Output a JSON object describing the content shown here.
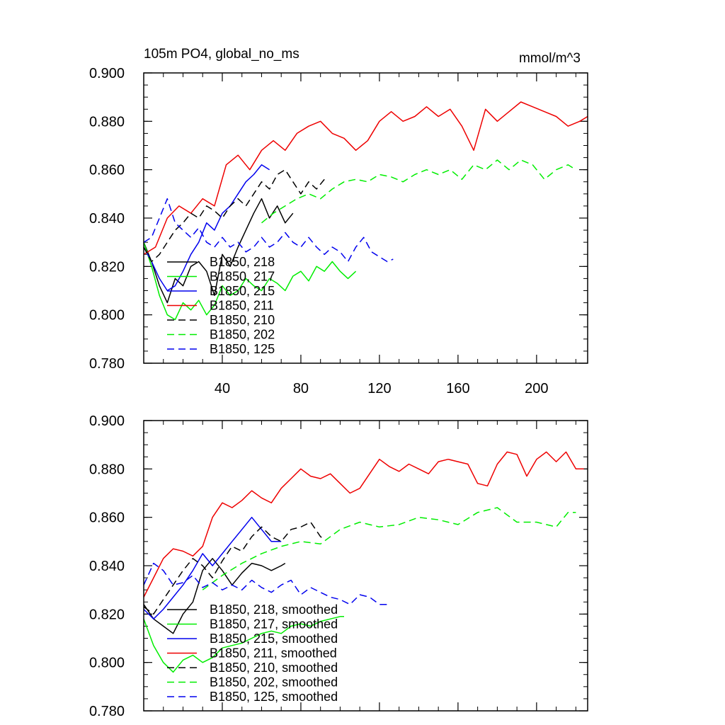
{
  "colors": {
    "black": "#000000",
    "green": "#00ee00",
    "blue": "#0000ee",
    "red": "#ee0000"
  },
  "chart_data": [
    {
      "type": "line",
      "title": "105m PO4, global_no_ms",
      "units": "mmol/m^3",
      "xlim": [
        0,
        226
      ],
      "ylim": [
        0.78,
        0.9
      ],
      "yticks": [
        "0.780",
        "0.800",
        "0.820",
        "0.840",
        "0.860",
        "0.880",
        "0.900"
      ],
      "xticks": [
        "40",
        "80",
        "120",
        "160",
        "200"
      ],
      "series": [
        {
          "name": "B1850, 218",
          "color": "#000000",
          "dash": "solid",
          "x": [
            0,
            4,
            8,
            12,
            16,
            20,
            24,
            28,
            32,
            36,
            40,
            44,
            48,
            52,
            56,
            60,
            64,
            68,
            72,
            76
          ],
          "y": [
            0.83,
            0.822,
            0.812,
            0.805,
            0.815,
            0.812,
            0.82,
            0.822,
            0.818,
            0.808,
            0.825,
            0.82,
            0.828,
            0.835,
            0.842,
            0.848,
            0.84,
            0.845,
            0.838,
            0.842
          ]
        },
        {
          "name": "B1850, 217",
          "color": "#00ee00",
          "dash": "solid",
          "x": [
            0,
            4,
            8,
            12,
            16,
            20,
            24,
            28,
            32,
            36,
            40,
            44,
            48,
            52,
            56,
            60,
            64,
            68,
            72,
            76,
            80,
            84,
            88,
            92,
            96,
            100,
            104,
            108
          ],
          "y": [
            0.83,
            0.82,
            0.808,
            0.8,
            0.798,
            0.805,
            0.802,
            0.806,
            0.8,
            0.804,
            0.812,
            0.808,
            0.81,
            0.815,
            0.812,
            0.81,
            0.815,
            0.813,
            0.81,
            0.816,
            0.818,
            0.814,
            0.82,
            0.818,
            0.822,
            0.818,
            0.815,
            0.818
          ]
        },
        {
          "name": "B1850, 215",
          "color": "#0000ee",
          "dash": "solid",
          "x": [
            0,
            4,
            8,
            12,
            16,
            20,
            24,
            28,
            32,
            36,
            40,
            44,
            48,
            52,
            56,
            60,
            64
          ],
          "y": [
            0.828,
            0.822,
            0.815,
            0.81,
            0.812,
            0.818,
            0.825,
            0.83,
            0.838,
            0.835,
            0.842,
            0.845,
            0.85,
            0.855,
            0.858,
            0.862,
            0.86
          ]
        },
        {
          "name": "B1850, 211",
          "color": "#ee0000",
          "dash": "solid",
          "x": [
            0,
            6,
            12,
            18,
            24,
            30,
            36,
            42,
            48,
            54,
            60,
            66,
            72,
            78,
            84,
            90,
            96,
            102,
            108,
            114,
            120,
            126,
            132,
            138,
            144,
            150,
            156,
            162,
            168,
            174,
            180,
            186,
            192,
            198,
            204,
            210,
            216,
            222,
            226
          ],
          "y": [
            0.825,
            0.828,
            0.84,
            0.845,
            0.842,
            0.848,
            0.845,
            0.862,
            0.866,
            0.86,
            0.868,
            0.872,
            0.868,
            0.875,
            0.878,
            0.88,
            0.875,
            0.873,
            0.868,
            0.872,
            0.88,
            0.884,
            0.88,
            0.882,
            0.886,
            0.882,
            0.885,
            0.878,
            0.868,
            0.885,
            0.88,
            0.884,
            0.888,
            0.886,
            0.884,
            0.882,
            0.878,
            0.88,
            0.882
          ]
        },
        {
          "name": "B1850, 210",
          "color": "#000000",
          "dash": "dashed",
          "x": [
            0,
            4,
            8,
            12,
            16,
            20,
            24,
            28,
            32,
            36,
            40,
            44,
            48,
            52,
            56,
            60,
            64,
            68,
            72,
            76,
            80,
            84,
            88,
            92
          ],
          "y": [
            0.828,
            0.822,
            0.825,
            0.83,
            0.835,
            0.838,
            0.842,
            0.84,
            0.845,
            0.843,
            0.84,
            0.845,
            0.848,
            0.845,
            0.85,
            0.855,
            0.852,
            0.858,
            0.86,
            0.855,
            0.85,
            0.855,
            0.852,
            0.856
          ]
        },
        {
          "name": "B1850, 202",
          "color": "#00ee00",
          "dash": "dashed",
          "x": [
            60,
            66,
            72,
            78,
            84,
            90,
            96,
            102,
            108,
            114,
            120,
            126,
            132,
            138,
            144,
            150,
            156,
            162,
            168,
            174,
            180,
            186,
            192,
            198,
            204,
            210,
            216,
            220
          ],
          "y": [
            0.838,
            0.842,
            0.845,
            0.848,
            0.85,
            0.848,
            0.852,
            0.855,
            0.856,
            0.855,
            0.858,
            0.857,
            0.855,
            0.858,
            0.86,
            0.858,
            0.86,
            0.856,
            0.862,
            0.86,
            0.864,
            0.86,
            0.864,
            0.862,
            0.856,
            0.86,
            0.862,
            0.86
          ]
        },
        {
          "name": "B1850, 125",
          "color": "#0000ee",
          "dash": "dashed",
          "x": [
            0,
            4,
            8,
            12,
            16,
            20,
            24,
            28,
            32,
            36,
            40,
            44,
            48,
            52,
            56,
            60,
            64,
            68,
            72,
            76,
            80,
            84,
            88,
            92,
            96,
            100,
            104,
            108,
            112,
            116,
            120,
            124,
            127
          ],
          "y": [
            0.83,
            0.832,
            0.84,
            0.848,
            0.838,
            0.835,
            0.832,
            0.836,
            0.83,
            0.828,
            0.832,
            0.828,
            0.83,
            0.826,
            0.828,
            0.832,
            0.828,
            0.83,
            0.834,
            0.83,
            0.828,
            0.832,
            0.828,
            0.825,
            0.828,
            0.826,
            0.822,
            0.828,
            0.832,
            0.826,
            0.824,
            0.822,
            0.823
          ]
        }
      ]
    },
    {
      "type": "line",
      "xlim": [
        0,
        226
      ],
      "ylim": [
        0.78,
        0.9
      ],
      "yticks": [
        "0.780",
        "0.800",
        "0.820",
        "0.840",
        "0.860",
        "0.880",
        "0.900"
      ],
      "series": [
        {
          "name": "B1850, 218, smoothed",
          "color": "#000000",
          "dash": "solid",
          "x": [
            0,
            5,
            10,
            15,
            20,
            25,
            30,
            35,
            40,
            45,
            50,
            55,
            60,
            65,
            70,
            72
          ],
          "y": [
            0.824,
            0.818,
            0.815,
            0.812,
            0.82,
            0.825,
            0.838,
            0.843,
            0.838,
            0.832,
            0.837,
            0.841,
            0.84,
            0.838,
            0.84,
            0.841
          ]
        },
        {
          "name": "B1850, 217, smoothed",
          "color": "#00ee00",
          "dash": "solid",
          "x": [
            0,
            5,
            10,
            15,
            20,
            25,
            30,
            35,
            40,
            45,
            50,
            55,
            60,
            65,
            70,
            75,
            80,
            85,
            90,
            95,
            100,
            102
          ],
          "y": [
            0.818,
            0.807,
            0.8,
            0.796,
            0.801,
            0.803,
            0.8,
            0.802,
            0.806,
            0.807,
            0.808,
            0.81,
            0.812,
            0.813,
            0.812,
            0.815,
            0.816,
            0.815,
            0.817,
            0.818,
            0.819,
            0.819
          ]
        },
        {
          "name": "B1850, 215, smoothed",
          "color": "#0000ee",
          "dash": "solid",
          "x": [
            0,
            5,
            10,
            15,
            20,
            25,
            30,
            35,
            40,
            45,
            50,
            55,
            60,
            65,
            70
          ],
          "y": [
            0.822,
            0.818,
            0.822,
            0.827,
            0.832,
            0.838,
            0.845,
            0.84,
            0.845,
            0.85,
            0.855,
            0.86,
            0.855,
            0.85,
            0.85
          ]
        },
        {
          "name": "B1850, 211, smoothed",
          "color": "#ee0000",
          "dash": "solid",
          "x": [
            0,
            5,
            10,
            15,
            20,
            25,
            30,
            35,
            40,
            45,
            50,
            55,
            60,
            65,
            70,
            75,
            80,
            85,
            90,
            95,
            100,
            105,
            110,
            115,
            120,
            125,
            130,
            135,
            140,
            145,
            150,
            155,
            160,
            165,
            170,
            175,
            180,
            185,
            190,
            195,
            200,
            205,
            210,
            215,
            220,
            224
          ],
          "y": [
            0.827,
            0.835,
            0.843,
            0.847,
            0.846,
            0.844,
            0.848,
            0.86,
            0.866,
            0.864,
            0.867,
            0.871,
            0.868,
            0.866,
            0.872,
            0.876,
            0.88,
            0.877,
            0.876,
            0.878,
            0.874,
            0.87,
            0.872,
            0.878,
            0.884,
            0.881,
            0.879,
            0.882,
            0.88,
            0.878,
            0.883,
            0.884,
            0.883,
            0.882,
            0.874,
            0.873,
            0.882,
            0.887,
            0.886,
            0.877,
            0.884,
            0.887,
            0.883,
            0.887,
            0.88,
            0.88
          ]
        },
        {
          "name": "B1850, 210, smoothed",
          "color": "#000000",
          "dash": "dashed",
          "x": [
            0,
            5,
            10,
            15,
            20,
            25,
            30,
            35,
            40,
            45,
            50,
            55,
            60,
            65,
            70,
            75,
            80,
            85,
            90,
            92
          ],
          "y": [
            0.823,
            0.82,
            0.826,
            0.832,
            0.838,
            0.843,
            0.84,
            0.835,
            0.842,
            0.848,
            0.846,
            0.852,
            0.856,
            0.852,
            0.85,
            0.855,
            0.856,
            0.858,
            0.852,
            0.851
          ]
        },
        {
          "name": "B1850, 202, smoothed",
          "color": "#00ee00",
          "dash": "dashed",
          "x": [
            30,
            40,
            50,
            60,
            70,
            80,
            90,
            100,
            110,
            120,
            130,
            140,
            150,
            160,
            170,
            180,
            190,
            200,
            210,
            216,
            220
          ],
          "y": [
            0.83,
            0.836,
            0.841,
            0.845,
            0.848,
            0.85,
            0.849,
            0.855,
            0.858,
            0.856,
            0.857,
            0.86,
            0.859,
            0.857,
            0.862,
            0.864,
            0.858,
            0.858,
            0.856,
            0.862,
            0.862
          ]
        },
        {
          "name": "B1850, 125, smoothed",
          "color": "#0000ee",
          "dash": "dashed",
          "x": [
            0,
            5,
            10,
            15,
            20,
            25,
            30,
            35,
            40,
            45,
            50,
            55,
            60,
            65,
            70,
            75,
            80,
            85,
            90,
            95,
            100,
            105,
            110,
            115,
            120,
            125
          ],
          "y": [
            0.832,
            0.841,
            0.838,
            0.832,
            0.833,
            0.836,
            0.831,
            0.833,
            0.83,
            0.832,
            0.83,
            0.834,
            0.831,
            0.829,
            0.832,
            0.834,
            0.828,
            0.831,
            0.829,
            0.827,
            0.826,
            0.824,
            0.828,
            0.827,
            0.824,
            0.824
          ]
        }
      ]
    }
  ]
}
